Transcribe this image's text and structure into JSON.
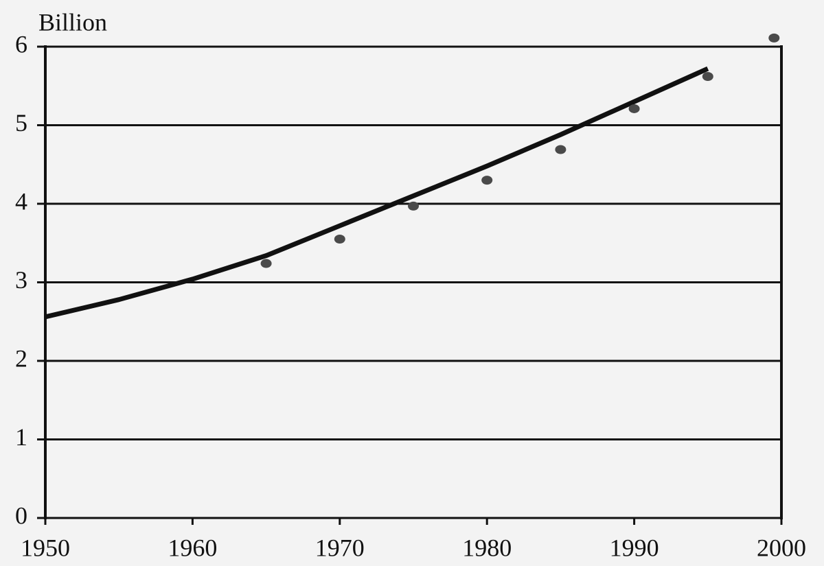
{
  "chart_data": {
    "type": "line",
    "y_label": "Billion",
    "xlim": [
      1950,
      2000
    ],
    "xticks": [
      1950,
      1960,
      1970,
      1980,
      1990,
      2000
    ],
    "ylim": [
      0,
      6
    ],
    "yticks": [
      0,
      1,
      2,
      3,
      4,
      5,
      6
    ],
    "grid": true,
    "series": [
      {
        "type": "line",
        "color": "#111111",
        "x": [
          1950,
          1955,
          1960,
          1965,
          1970,
          1975,
          1980,
          1985,
          1990,
          1995
        ],
        "values": [
          2.56,
          2.78,
          3.04,
          3.34,
          3.72,
          4.1,
          4.48,
          4.88,
          5.3,
          5.72
        ]
      },
      {
        "type": "scatter",
        "color": "#4a4a4a",
        "x": [
          1965,
          1970,
          1975,
          1980,
          1985,
          1990,
          1995,
          1999.5
        ],
        "values": [
          3.24,
          3.55,
          3.97,
          4.3,
          4.69,
          5.21,
          5.62,
          6.11
        ]
      }
    ]
  }
}
